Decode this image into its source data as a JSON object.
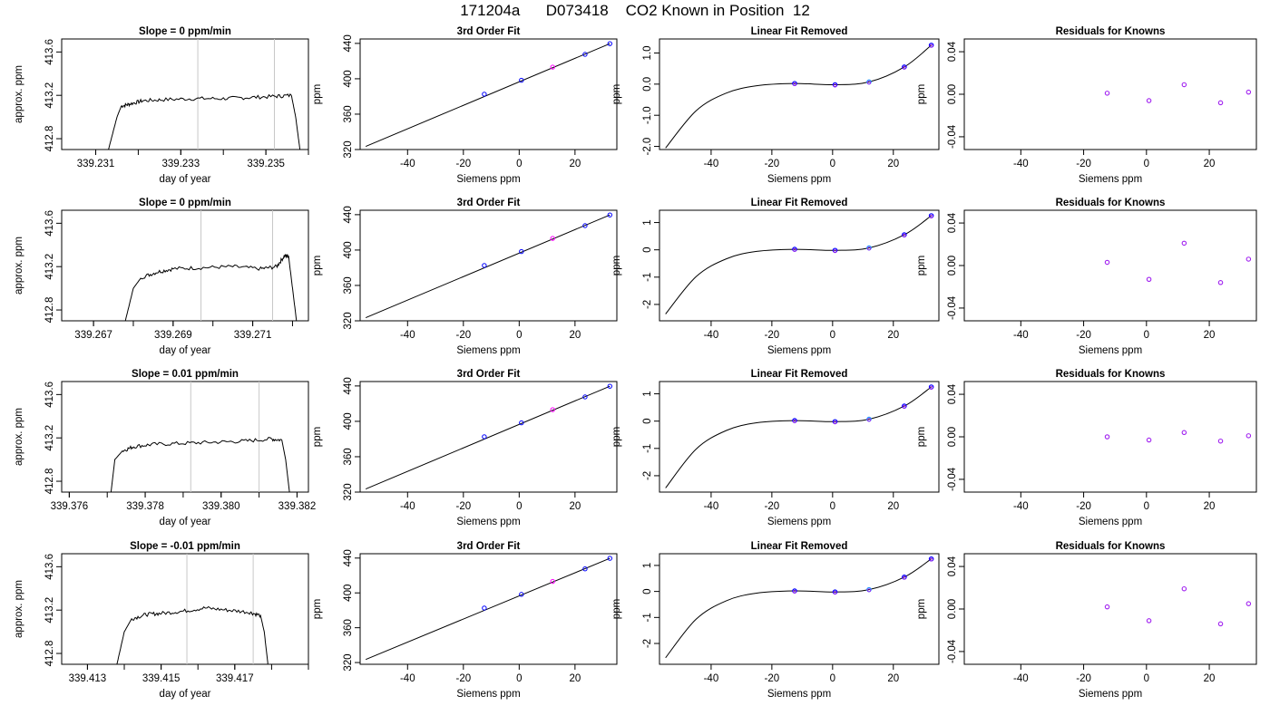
{
  "page_title": "171204a      D073418    CO2 Known in Position  12",
  "colors": {
    "curve": "#000000",
    "marker_known": "#0000ff",
    "marker_residual": "#a020f0",
    "marker_highlight": "#1e90ff",
    "fit_midpoint": "#ff00ff",
    "window_line": "#c8c8c8",
    "raw_trace_accent": "#ff0000"
  },
  "chart_data": [
    {
      "type": "line",
      "panel": "time_series",
      "row": 1,
      "title": "Slope =  0  ppm/min",
      "xlabel": "day of year",
      "ylabel": "approx. ppm",
      "x_ticks": [
        "339.231",
        "339.233",
        "339.235"
      ],
      "y_ticks": [
        "412.8",
        "413.2",
        "413.6"
      ],
      "xlim": [
        339.2302,
        339.236
      ],
      "ylim": [
        412.7,
        413.72
      ],
      "window_lines": [
        339.2334,
        339.2352
      ],
      "x": [
        339.2313,
        339.2315,
        339.2316,
        339.2318,
        339.2321,
        339.2326,
        339.2333,
        339.234,
        339.2346,
        339.2352,
        339.2356,
        339.2357,
        339.2358
      ],
      "values": [
        412.7,
        413.0,
        413.1,
        413.12,
        413.15,
        413.16,
        413.17,
        413.17,
        413.18,
        413.19,
        413.2,
        413.0,
        412.7
      ]
    },
    {
      "type": "line",
      "panel": "third_order_fit",
      "row": 1,
      "title": "3rd Order Fit",
      "xlabel": "Siemens ppm",
      "ylabel": "ppm",
      "x_ticks": [
        "-40",
        "-20",
        "0",
        "20"
      ],
      "y_ticks": [
        "320",
        "360",
        "400",
        "440"
      ],
      "xlim": [
        -57,
        35
      ],
      "ylim": [
        320,
        445
      ],
      "x": [
        -12.5,
        0.8,
        12.0,
        23.6,
        32.5
      ],
      "values": [
        382.6,
        398.3,
        413.2,
        427.6,
        439.7
      ],
      "curve_start": [
        -55,
        323.5
      ]
    },
    {
      "type": "line",
      "panel": "linear_fit_removed",
      "row": 1,
      "title": "Linear Fit Removed",
      "xlabel": "Siemens ppm",
      "ylabel": "ppm",
      "x_ticks": [
        "-40",
        "-20",
        "0",
        "20"
      ],
      "y_ticks": [
        "-2.0",
        "-1.0",
        "0.0",
        "1.0"
      ],
      "xlim": [
        -57,
        35
      ],
      "ylim": [
        -2.1,
        1.45
      ],
      "x": [
        -12.5,
        0.8,
        12.0,
        23.6,
        32.5
      ],
      "values": [
        0.02,
        -0.02,
        0.07,
        0.55,
        1.25
      ],
      "curve_anchor": [
        -55,
        -2.05
      ]
    },
    {
      "type": "scatter",
      "panel": "residuals",
      "row": 1,
      "title": "Residuals for Knowns",
      "xlabel": "Siemens ppm",
      "ylabel": "ppm",
      "x_ticks": [
        "-40",
        "-20",
        "0",
        "20"
      ],
      "y_ticks": [
        "-0.04",
        "0.00",
        "0.04"
      ],
      "xlim": [
        -58,
        35
      ],
      "ylim": [
        -0.052,
        0.052
      ],
      "x": [
        -12.5,
        0.8,
        12.0,
        23.6,
        32.5
      ],
      "values": [
        0.001,
        -0.006,
        0.009,
        -0.008,
        0.002
      ]
    },
    {
      "type": "line",
      "panel": "time_series",
      "row": 2,
      "title": "Slope =  0  ppm/min",
      "xlabel": "day of year",
      "ylabel": "approx. ppm",
      "x_ticks": [
        "339.267",
        "339.269",
        "339.271"
      ],
      "y_ticks": [
        "412.8",
        "413.2",
        "413.6"
      ],
      "xlim": [
        339.2662,
        339.2724
      ],
      "ylim": [
        412.7,
        413.72
      ],
      "window_lines": [
        339.2697,
        339.2715
      ],
      "x": [
        339.2678,
        339.268,
        339.2682,
        339.2686,
        339.269,
        339.2697,
        339.2705,
        339.2712,
        339.2716,
        339.2718,
        339.2719,
        339.272,
        339.2721
      ],
      "values": [
        412.7,
        413.0,
        413.1,
        413.15,
        413.18,
        413.19,
        413.2,
        413.18,
        413.2,
        413.3,
        413.3,
        413.0,
        412.7
      ]
    },
    {
      "type": "line",
      "panel": "third_order_fit",
      "row": 2,
      "title": "3rd Order Fit",
      "xlabel": "Siemens ppm",
      "ylabel": "ppm",
      "x_ticks": [
        "-40",
        "-20",
        "0",
        "20"
      ],
      "y_ticks": [
        "320",
        "360",
        "400",
        "440"
      ],
      "xlim": [
        -57,
        35
      ],
      "ylim": [
        320,
        445
      ],
      "x": [
        -12.5,
        0.8,
        12.0,
        23.6,
        32.5
      ],
      "values": [
        382.6,
        398.3,
        413.2,
        427.6,
        439.7
      ],
      "curve_start": [
        -55,
        323.5
      ]
    },
    {
      "type": "line",
      "panel": "linear_fit_removed",
      "row": 2,
      "title": "Linear Fit Removed",
      "xlabel": "Siemens ppm",
      "ylabel": "ppm",
      "x_ticks": [
        "-40",
        "-20",
        "0",
        "20"
      ],
      "y_ticks": [
        "-2",
        "-1",
        "0",
        "1"
      ],
      "xlim": [
        -57,
        35
      ],
      "ylim": [
        -2.6,
        1.45
      ],
      "x": [
        -12.5,
        0.8,
        12.0,
        23.6,
        32.5
      ],
      "values": [
        0.02,
        -0.02,
        0.07,
        0.55,
        1.25
      ],
      "curve_anchor": [
        -55,
        -2.35
      ]
    },
    {
      "type": "scatter",
      "panel": "residuals",
      "row": 2,
      "title": "Residuals for Knowns",
      "xlabel": "Siemens ppm",
      "ylabel": "ppm",
      "x_ticks": [
        "-40",
        "-20",
        "0",
        "20"
      ],
      "y_ticks": [
        "-0.04",
        "0.00",
        "0.04"
      ],
      "xlim": [
        -58,
        35
      ],
      "ylim": [
        -0.052,
        0.052
      ],
      "x": [
        -12.5,
        0.8,
        12.0,
        23.6,
        32.5
      ],
      "values": [
        0.003,
        -0.013,
        0.021,
        -0.016,
        0.006
      ]
    },
    {
      "type": "line",
      "panel": "time_series",
      "row": 3,
      "title": "Slope =  0.01  ppm/min",
      "xlabel": "day of year",
      "ylabel": "approx. ppm",
      "x_ticks": [
        "339.376",
        "339.378",
        "339.380",
        "339.382"
      ],
      "y_ticks": [
        "412.8",
        "413.2",
        "413.6"
      ],
      "xlim": [
        339.3758,
        339.3823
      ],
      "ylim": [
        412.7,
        413.72
      ],
      "window_lines": [
        339.3792,
        339.381
      ],
      "x": [
        339.3771,
        339.3772,
        339.3774,
        339.3777,
        339.3782,
        339.379,
        339.3798,
        339.3806,
        339.3813,
        339.3816,
        339.3817,
        339.3818
      ],
      "values": [
        412.7,
        413.0,
        413.08,
        413.12,
        413.14,
        413.15,
        413.16,
        413.17,
        413.19,
        413.18,
        413.0,
        412.7
      ]
    },
    {
      "type": "line",
      "panel": "third_order_fit",
      "row": 3,
      "title": "3rd Order Fit",
      "xlabel": "Siemens ppm",
      "ylabel": "ppm",
      "x_ticks": [
        "-40",
        "-20",
        "0",
        "20"
      ],
      "y_ticks": [
        "320",
        "360",
        "400",
        "440"
      ],
      "xlim": [
        -57,
        35
      ],
      "ylim": [
        320,
        445
      ],
      "x": [
        -12.5,
        0.8,
        12.0,
        23.6,
        32.5
      ],
      "values": [
        382.6,
        398.3,
        413.2,
        427.6,
        439.7
      ],
      "curve_start": [
        -55,
        323.5
      ]
    },
    {
      "type": "line",
      "panel": "linear_fit_removed",
      "row": 3,
      "title": "Linear Fit Removed",
      "xlabel": "Siemens ppm",
      "ylabel": "ppm",
      "x_ticks": [
        "-40",
        "-20",
        "0",
        "20"
      ],
      "y_ticks": [
        "-2",
        "-1",
        "0",
        "1"
      ],
      "xlim": [
        -57,
        35
      ],
      "ylim": [
        -2.6,
        1.45
      ],
      "x": [
        -12.5,
        0.8,
        12.0,
        23.6,
        32.5
      ],
      "values": [
        0.02,
        -0.02,
        0.07,
        0.55,
        1.25
      ],
      "curve_anchor": [
        -55,
        -2.45
      ]
    },
    {
      "type": "scatter",
      "panel": "residuals",
      "row": 3,
      "title": "Residuals for Knowns",
      "xlabel": "Siemens ppm",
      "ylabel": "ppm",
      "x_ticks": [
        "-40",
        "-20",
        "0",
        "20"
      ],
      "y_ticks": [
        "-0.04",
        "0.00",
        "0.04"
      ],
      "xlim": [
        -58,
        35
      ],
      "ylim": [
        -0.052,
        0.052
      ],
      "x": [
        -12.5,
        0.8,
        12.0,
        23.6,
        32.5
      ],
      "values": [
        0.0,
        -0.003,
        0.004,
        -0.004,
        0.001
      ]
    },
    {
      "type": "line",
      "panel": "time_series",
      "row": 4,
      "title": "Slope =  -0.01  ppm/min",
      "xlabel": "day of year",
      "ylabel": "approx. ppm",
      "x_ticks": [
        "339.413",
        "339.415",
        "339.417"
      ],
      "y_ticks": [
        "412.8",
        "413.2",
        "413.6"
      ],
      "xlim": [
        339.4123,
        339.419
      ],
      "ylim": [
        412.7,
        413.72
      ],
      "window_lines": [
        339.4157,
        339.4175
      ],
      "x": [
        339.4138,
        339.414,
        339.4142,
        339.4146,
        339.415,
        339.4156,
        339.4162,
        339.4168,
        339.4174,
        339.4177,
        339.4178,
        339.4179
      ],
      "values": [
        412.7,
        413.0,
        413.12,
        413.16,
        413.17,
        413.19,
        413.22,
        413.2,
        413.18,
        413.15,
        413.0,
        412.7
      ]
    },
    {
      "type": "line",
      "panel": "third_order_fit",
      "row": 4,
      "title": "3rd Order Fit",
      "xlabel": "Siemens ppm",
      "ylabel": "ppm",
      "x_ticks": [
        "-40",
        "-20",
        "0",
        "20"
      ],
      "y_ticks": [
        "320",
        "360",
        "400",
        "440"
      ],
      "xlim": [
        -57,
        35
      ],
      "ylim": [
        318,
        445
      ],
      "x": [
        -12.5,
        0.8,
        12.0,
        23.6,
        32.5
      ],
      "values": [
        382.6,
        398.3,
        413.2,
        427.6,
        439.7
      ],
      "curve_start": [
        -55,
        323.5
      ]
    },
    {
      "type": "line",
      "panel": "linear_fit_removed",
      "row": 4,
      "title": "Linear Fit Removed",
      "xlabel": "Siemens ppm",
      "ylabel": "ppm",
      "x_ticks": [
        "-40",
        "-20",
        "0",
        "20"
      ],
      "y_ticks": [
        "-2",
        "-1",
        "0",
        "1"
      ],
      "xlim": [
        -57,
        35
      ],
      "ylim": [
        -2.8,
        1.45
      ],
      "x": [
        -12.5,
        0.8,
        12.0,
        23.6,
        32.5
      ],
      "values": [
        0.02,
        -0.02,
        0.07,
        0.55,
        1.25
      ],
      "curve_anchor": [
        -55,
        -2.55
      ]
    },
    {
      "type": "scatter",
      "panel": "residuals",
      "row": 4,
      "title": "Residuals for Knowns",
      "xlabel": "Siemens ppm",
      "ylabel": "ppm",
      "x_ticks": [
        "-40",
        "-20",
        "0",
        "20"
      ],
      "y_ticks": [
        "-0.04",
        "0.00",
        "0.04"
      ],
      "xlim": [
        -58,
        35
      ],
      "ylim": [
        -0.052,
        0.052
      ],
      "x": [
        -12.5,
        0.8,
        12.0,
        23.6,
        32.5
      ],
      "values": [
        0.002,
        -0.011,
        0.019,
        -0.014,
        0.005
      ]
    }
  ]
}
